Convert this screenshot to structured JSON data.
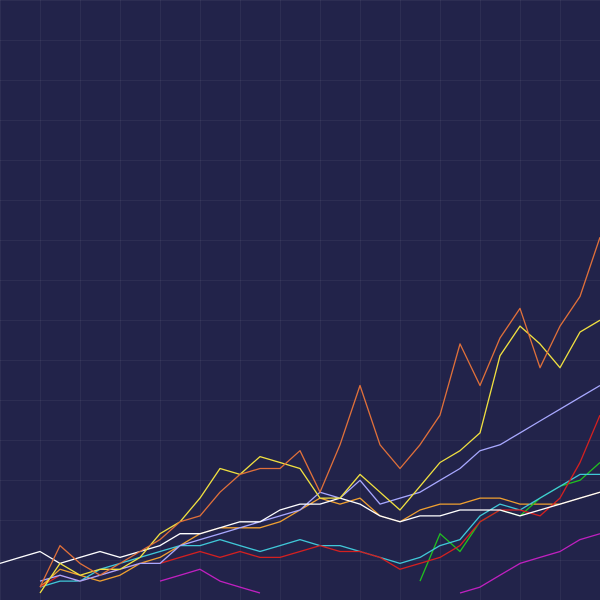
{
  "chart_data": {
    "type": "line",
    "x": [
      0,
      20,
      40,
      60,
      80,
      100,
      120,
      140,
      160,
      180,
      200,
      220,
      240,
      260,
      280,
      300,
      320,
      340,
      360,
      380,
      400,
      420,
      440,
      460,
      480,
      500,
      520,
      540,
      560,
      580,
      600
    ],
    "xlim": [
      0,
      600
    ],
    "ylim": [
      0,
      100
    ],
    "series": [
      {
        "color": "#f0a030",
        "values": [
          null,
          null,
          1,
          4,
          3,
          2,
          3,
          5,
          6,
          8,
          10,
          11,
          11,
          11,
          12,
          14,
          16,
          15,
          16,
          13,
          12,
          14,
          15,
          15,
          16,
          16,
          15,
          15,
          15,
          16,
          17
        ]
      },
      {
        "color": "#c020c0",
        "values": [
          null,
          null,
          null,
          null,
          null,
          null,
          null,
          null,
          2,
          3,
          4,
          2,
          1,
          0,
          null,
          null,
          null,
          null,
          null,
          null,
          null,
          null,
          null,
          0,
          1,
          3,
          5,
          6,
          7,
          9,
          10
        ]
      },
      {
        "color": "#20c020",
        "values": [
          null,
          null,
          null,
          null,
          null,
          null,
          null,
          null,
          null,
          null,
          null,
          null,
          null,
          null,
          null,
          null,
          null,
          null,
          null,
          null,
          null,
          2,
          10,
          7,
          12,
          14,
          13,
          16,
          18,
          19,
          22
        ]
      },
      {
        "color": "#40c8d8",
        "values": [
          null,
          null,
          1,
          2,
          2,
          4,
          5,
          6,
          7,
          8,
          8,
          9,
          8,
          7,
          8,
          9,
          8,
          8,
          7,
          6,
          5,
          6,
          8,
          9,
          13,
          15,
          14,
          16,
          18,
          20,
          20
        ]
      },
      {
        "color": "#d42020",
        "values": [
          null,
          null,
          1,
          3,
          2,
          3,
          4,
          5,
          5,
          6,
          7,
          6,
          7,
          6,
          6,
          7,
          8,
          7,
          7,
          6,
          4,
          5,
          6,
          8,
          12,
          14,
          14,
          13,
          16,
          22,
          30
        ]
      },
      {
        "color": "#a8a8ff",
        "values": [
          null,
          null,
          2,
          3,
          2,
          3,
          4,
          5,
          5,
          8,
          9,
          10,
          11,
          12,
          13,
          14,
          17,
          16,
          19,
          15,
          16,
          17,
          19,
          21,
          24,
          25,
          27,
          29,
          31,
          33,
          35
        ]
      },
      {
        "color": "#ffffff",
        "values": [
          5,
          6,
          7,
          5,
          6,
          7,
          6,
          7,
          8,
          10,
          10,
          11,
          12,
          12,
          14,
          15,
          15,
          16,
          15,
          13,
          12,
          13,
          13,
          14,
          14,
          14,
          13,
          14,
          15,
          16,
          17
        ]
      },
      {
        "color": "#f0e040",
        "values": [
          null,
          null,
          0,
          5,
          3,
          4,
          4,
          6,
          10,
          12,
          16,
          21,
          20,
          23,
          22,
          21,
          16,
          16,
          20,
          17,
          14,
          18,
          22,
          24,
          27,
          40,
          45,
          42,
          38,
          44,
          46
        ]
      },
      {
        "color": "#e0703a",
        "values": [
          null,
          null,
          1,
          8,
          5,
          3,
          5,
          7,
          9,
          12,
          13,
          17,
          20,
          21,
          21,
          24,
          17,
          25,
          35,
          25,
          21,
          25,
          30,
          42,
          35,
          43,
          48,
          38,
          45,
          50,
          60
        ]
      }
    ]
  }
}
